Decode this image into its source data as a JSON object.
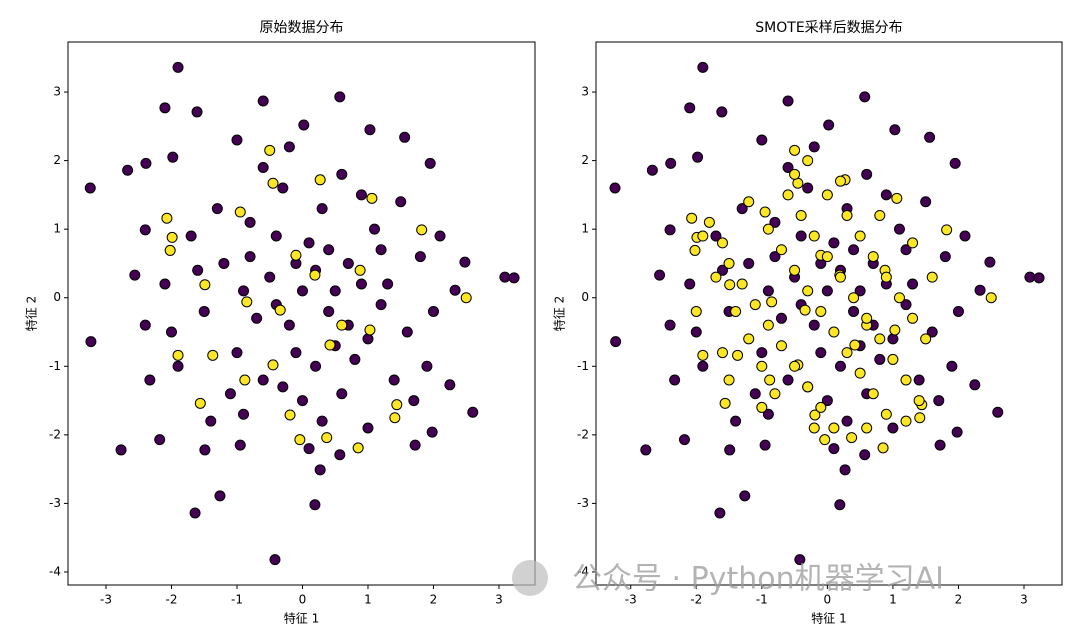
{
  "chart_data": [
    {
      "type": "scatter",
      "title": "原始数据分布",
      "xlabel": "特征 1",
      "ylabel": "特征 2",
      "xlim": [
        -3.58,
        3.55
      ],
      "ylim": [
        -4.19,
        3.73
      ],
      "xticks": [
        -3,
        -2,
        -1,
        0,
        1,
        2,
        3
      ],
      "yticks": [
        -4,
        -3,
        -2,
        -1,
        0,
        1,
        2,
        3
      ],
      "series": [
        {
          "color": "#440154",
          "x": [
            -1.9,
            -3.24,
            -3.23,
            -2.77,
            -1.64,
            -1.26,
            -0.42,
            0.19,
            3.09,
            3.23,
            2.6,
            -2.1,
            -1.61,
            -0.6,
            0.57,
            0.02,
            -2.67,
            -2.39,
            -1.98,
            -1.0,
            1.03,
            1.56,
            1.95,
            2.48,
            2.33,
            2.25,
            1.98,
            1.72,
            0.57,
            0.27,
            -2.18,
            -1.49,
            -0.95,
            -2.33,
            -2.56,
            -2.4,
            -2.4,
            -1.2,
            -0.8,
            -0.5,
            -0.2,
            0.1,
            0.4,
            0.7,
            1.0,
            1.3,
            -1.0,
            -0.6,
            0.2,
            0.6,
            1.1,
            -1.5,
            -1.7,
            0.9,
            -0.3,
            0.3,
            1.6,
            1.8,
            -1.9,
            -0.9,
            0.0,
            0.8,
            1.4,
            -0.4,
            0.0,
            0.5,
            -0.7,
            0.2,
            -0.1,
            1.2,
            -1.3,
            0.6,
            -0.6,
            2.0,
            -2.1,
            1.5,
            -1.1,
            0.3,
            1.0,
            -0.2,
            0.1,
            -1.4,
            1.9,
            -2.0,
            2.1,
            -0.9,
            0.7,
            0.4,
            -0.4,
            0.9,
            -0.1,
            -1.6,
            1.7,
            0.5,
            -0.3,
            1.2,
            -0.8
          ],
          "y": [
            3.36,
            1.6,
            -0.64,
            -2.22,
            -3.14,
            -2.89,
            -3.82,
            -3.02,
            0.3,
            0.29,
            -1.67,
            2.77,
            2.71,
            2.87,
            2.93,
            2.52,
            1.86,
            1.96,
            2.05,
            2.3,
            2.45,
            2.34,
            1.96,
            0.52,
            0.11,
            -1.27,
            -1.96,
            -2.15,
            -2.29,
            -2.51,
            -2.07,
            -2.22,
            -2.15,
            -1.2,
            0.33,
            0.99,
            -0.4,
            0.5,
            1.1,
            0.3,
            -0.4,
            0.8,
            -0.2,
            0.5,
            -0.6,
            0.2,
            -0.8,
            -1.2,
            -1.0,
            -1.4,
            1.0,
            -0.2,
            0.9,
            1.5,
            1.6,
            1.3,
            -0.5,
            0.6,
            -1.0,
            -1.7,
            -1.5,
            -0.9,
            -1.2,
            0.9,
            0.1,
            0.1,
            -0.3,
            0.4,
            -0.8,
            -0.1,
            1.3,
            1.8,
            1.9,
            -0.2,
            0.2,
            1.4,
            -1.4,
            -1.8,
            -1.9,
            2.2,
            -2.2,
            -1.8,
            -1.0,
            -0.5,
            0.9,
            0.1,
            -0.4,
            0.7,
            -0.1,
            0.2,
            0.5,
            0.4,
            -1.5,
            -0.7,
            -1.3,
            0.7,
            0.6
          ]
        },
        {
          "color": "#fde725",
          "x": [
            -0.5,
            -0.45,
            -0.95,
            -2.07,
            -1.99,
            -2.02,
            -1.49,
            -1.9,
            -1.56,
            -1.37,
            -0.88,
            -0.45,
            0.27,
            1.06,
            1.82,
            2.5,
            1.44,
            1.41,
            0.85,
            0.37,
            -0.19,
            -0.04,
            -0.34,
            0.19,
            0.6,
            0.88,
            -0.85,
            -0.1,
            0.42,
            1.03
          ],
          "y": [
            2.15,
            1.67,
            1.25,
            1.16,
            0.88,
            0.69,
            0.19,
            -0.84,
            -1.54,
            -0.84,
            -1.2,
            -0.98,
            1.72,
            1.45,
            0.99,
            0.0,
            -1.56,
            -1.75,
            -2.19,
            -2.04,
            -1.71,
            -2.07,
            -0.18,
            0.33,
            -0.4,
            0.4,
            -0.06,
            0.62,
            -0.69,
            -0.47
          ]
        }
      ]
    },
    {
      "type": "scatter",
      "title": "SMOTE采样后数据分布",
      "xlabel": "特征 1",
      "ylabel": "特征 2",
      "xlim": [
        -3.53,
        3.58
      ],
      "ylim": [
        -4.19,
        3.73
      ],
      "xticks": [
        -3,
        -2,
        -1,
        0,
        1,
        2,
        3
      ],
      "yticks": [
        -4,
        -3,
        -2,
        -1,
        0,
        1,
        2,
        3
      ],
      "series": [
        {
          "color": "#440154",
          "x": [
            -1.9,
            -3.24,
            -3.23,
            -2.77,
            -1.64,
            -1.26,
            -0.42,
            0.19,
            3.09,
            3.23,
            2.6,
            -2.1,
            -1.61,
            -0.6,
            0.57,
            0.02,
            -2.67,
            -2.39,
            -1.98,
            -1.0,
            1.03,
            1.56,
            1.95,
            2.48,
            2.33,
            2.25,
            1.98,
            1.72,
            0.57,
            0.27,
            -2.18,
            -1.49,
            -0.95,
            -2.33,
            -2.56,
            -2.4,
            -2.4,
            -1.2,
            -0.8,
            -0.5,
            -0.2,
            0.1,
            0.4,
            0.7,
            1.0,
            1.3,
            -1.0,
            -0.6,
            0.2,
            0.6,
            1.1,
            -1.5,
            -1.7,
            0.9,
            -0.3,
            0.3,
            1.6,
            1.8,
            -1.9,
            -0.9,
            0.0,
            0.8,
            1.4,
            -0.4,
            0.0,
            0.5,
            -0.7,
            0.2,
            -0.1,
            1.2,
            -1.3,
            0.6,
            -0.6,
            2.0,
            -2.1,
            1.5,
            -1.1,
            0.3,
            1.0,
            -0.2,
            0.1,
            -1.4,
            1.9,
            -2.0,
            2.1,
            -0.9,
            0.7,
            0.4,
            -0.4,
            0.9,
            -0.1,
            -1.6,
            1.7,
            0.5,
            -0.3,
            1.2,
            -0.8
          ],
          "y": [
            3.36,
            1.6,
            -0.64,
            -2.22,
            -3.14,
            -2.89,
            -3.82,
            -3.02,
            0.3,
            0.29,
            -1.67,
            2.77,
            2.71,
            2.87,
            2.93,
            2.52,
            1.86,
            1.96,
            2.05,
            2.3,
            2.45,
            2.34,
            1.96,
            0.52,
            0.11,
            -1.27,
            -1.96,
            -2.15,
            -2.29,
            -2.51,
            -2.07,
            -2.22,
            -2.15,
            -1.2,
            0.33,
            0.99,
            -0.4,
            0.5,
            1.1,
            0.3,
            -0.4,
            0.8,
            -0.2,
            0.5,
            -0.6,
            0.2,
            -0.8,
            -1.2,
            -1.0,
            -1.4,
            1.0,
            -0.2,
            0.9,
            1.5,
            1.6,
            1.3,
            -0.5,
            0.6,
            -1.0,
            -1.7,
            -1.5,
            -0.9,
            -1.2,
            0.9,
            0.1,
            0.1,
            -0.3,
            0.4,
            -0.8,
            -0.1,
            1.3,
            1.8,
            1.9,
            -0.2,
            0.2,
            1.4,
            -1.4,
            -1.8,
            -1.9,
            2.2,
            -2.2,
            -1.8,
            -1.0,
            -0.5,
            0.9,
            0.1,
            -0.4,
            0.7,
            -0.1,
            0.2,
            0.5,
            0.4,
            -1.5,
            -0.7,
            -1.3,
            0.7,
            0.6
          ]
        },
        {
          "color": "#fde725",
          "x": [
            -0.5,
            -0.45,
            -0.95,
            -2.07,
            -1.99,
            -2.02,
            -1.49,
            -1.9,
            -1.56,
            -1.37,
            -0.88,
            -0.45,
            0.27,
            1.06,
            1.82,
            2.5,
            1.44,
            1.41,
            0.85,
            0.37,
            -0.19,
            -0.04,
            -0.34,
            0.19,
            0.6,
            0.88,
            -0.85,
            -0.1,
            0.42,
            1.03,
            -1.8,
            -1.6,
            -1.5,
            -1.3,
            -1.1,
            -0.9,
            -0.7,
            -0.5,
            -0.3,
            -0.1,
            0.1,
            -1.9,
            -1.7,
            -1.4,
            -1.2,
            -1.0,
            -0.8,
            -0.6,
            -0.4,
            -0.2,
            0.0,
            0.2,
            0.4,
            0.6,
            0.8,
            1.0,
            1.2,
            1.4,
            -0.5,
            -0.3,
            0.0,
            0.3,
            0.5,
            0.7,
            0.9,
            1.1,
            1.3,
            1.5,
            -1.2,
            -0.9,
            -0.7,
            -0.5,
            -0.3,
            -0.1,
            0.1,
            0.3,
            0.5,
            0.7,
            0.9,
            -1.5,
            -1.0,
            0.2,
            0.8,
            1.3,
            1.6,
            -2.0,
            -1.6,
            0.6,
            1.2,
            -0.2
          ],
          "y": [
            2.15,
            1.67,
            1.25,
            1.16,
            0.88,
            0.69,
            0.19,
            -0.84,
            -1.54,
            -0.84,
            -1.2,
            -0.98,
            1.72,
            1.45,
            0.99,
            0.0,
            -1.56,
            -1.75,
            -2.19,
            -2.04,
            -1.71,
            -2.07,
            -0.18,
            0.33,
            -0.4,
            0.4,
            -0.06,
            0.62,
            -0.69,
            -0.47,
            1.1,
            0.8,
            0.5,
            0.2,
            -0.1,
            -0.4,
            -0.7,
            -1.0,
            -1.3,
            -1.6,
            -1.9,
            0.9,
            0.3,
            -0.2,
            -0.6,
            -1.0,
            -1.4,
            1.5,
            1.2,
            0.9,
            0.6,
            0.3,
            0.0,
            -0.3,
            -0.6,
            -0.9,
            -1.2,
            -1.5,
            1.8,
            2.0,
            1.5,
            1.2,
            0.9,
            0.6,
            0.3,
            0.0,
            -0.3,
            -0.6,
            1.4,
            1.0,
            0.7,
            0.4,
            0.1,
            -0.2,
            -0.5,
            -0.8,
            -1.1,
            -1.4,
            -1.7,
            -1.2,
            -1.6,
            1.7,
            1.2,
            0.8,
            0.3,
            -0.2,
            -0.8,
            -1.9,
            -1.8,
            -1.9
          ]
        }
      ]
    }
  ],
  "watermark": "公众号 · Python机器学习AI"
}
